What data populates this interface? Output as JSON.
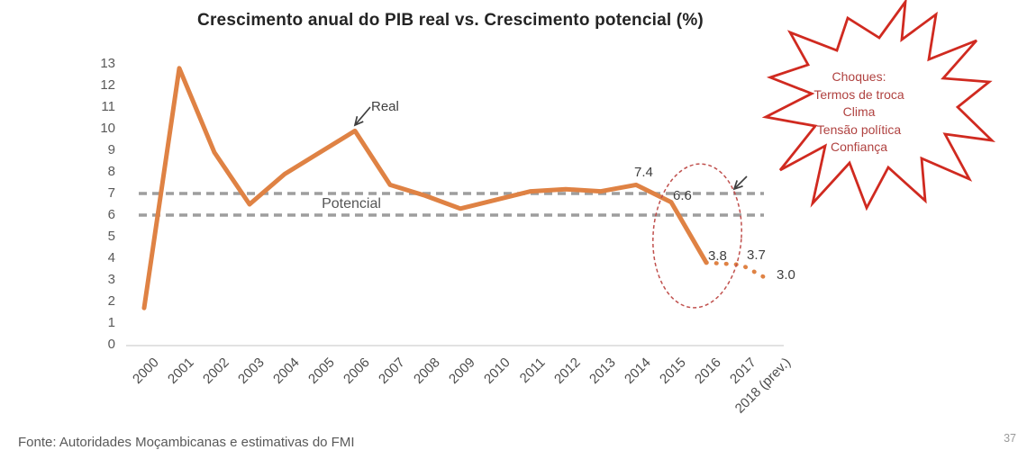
{
  "slide": {
    "footer": "Fonte: Autoridades Moçambicanas e estimativas do FMI",
    "page_number": "37"
  },
  "chart_data": {
    "type": "line",
    "title": "Crescimento anual do PIB real vs. Crescimento potencial (%)",
    "categories": [
      "2000",
      "2001",
      "2002",
      "2003",
      "2004",
      "2005",
      "2006",
      "2007",
      "2008",
      "2009",
      "2010",
      "2011",
      "2012",
      "2013",
      "2014",
      "2015",
      "2016",
      "2017",
      "2018 (prev.)"
    ],
    "series": [
      {
        "name": "Real",
        "style": "solid-then-dotted",
        "dotted_from_index": 16,
        "color": "#DF8244",
        "values": [
          1.7,
          12.8,
          8.9,
          6.5,
          7.9,
          8.9,
          9.9,
          7.4,
          6.9,
          6.3,
          6.7,
          7.1,
          7.2,
          7.1,
          7.4,
          6.6,
          3.8,
          3.7,
          3.0
        ]
      },
      {
        "name": "Potencial",
        "style": "dashed-horizontal-band",
        "color": "#9E9E9E",
        "values": [
          7.0,
          6.0
        ]
      }
    ],
    "xlabel": "",
    "ylabel": "",
    "ylim": [
      0,
      13
    ],
    "yticks": [
      "0",
      "1",
      "2",
      "3",
      "4",
      "5",
      "6",
      "7",
      "8",
      "9",
      "10",
      "11",
      "12",
      "13"
    ],
    "grid": "off",
    "legend_position": "inline-annotations",
    "series_labels": {
      "real": "Real",
      "potencial": "Potencial"
    },
    "point_labels": [
      {
        "text": "7.4",
        "index": 14
      },
      {
        "text": "6.6",
        "index": 15
      },
      {
        "text": "3.8",
        "index": 16
      },
      {
        "text": "3.7",
        "index": 17
      },
      {
        "text": "3.0",
        "index": 18
      }
    ]
  },
  "callout": {
    "lines": [
      "Choques:",
      "Termos de troca",
      "Clima",
      "Tensão política",
      "Confiança"
    ],
    "text_color": "#B04240",
    "border_color": "#D02A20"
  },
  "colors": {
    "real_line": "#DF8244",
    "potential_line": "#9E9E9E",
    "axis_line": "#D9D9D9",
    "tick_text": "#595959",
    "annotation_text": "#3F3F3F",
    "ellipse": "#C0504D",
    "arrow": "#3F3F3F"
  }
}
